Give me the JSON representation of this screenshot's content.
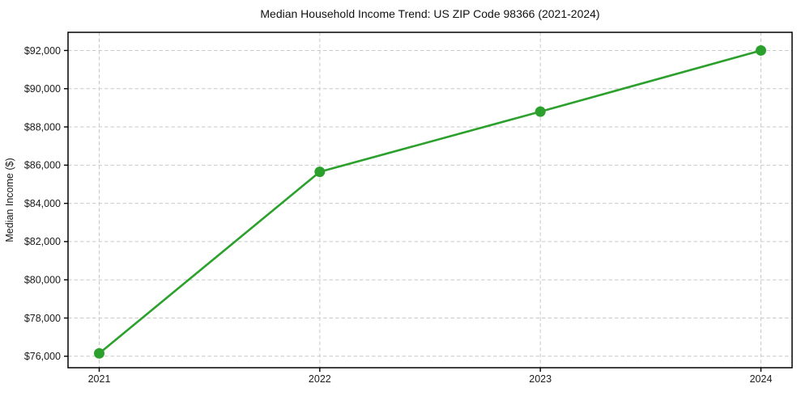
{
  "figure": {
    "background": "#ffffff"
  },
  "chart_data": {
    "type": "line",
    "title": "Median Household Income Trend: US ZIP Code 98366 (2021-2024)",
    "xlabel": "",
    "ylabel": "Median Income ($)",
    "categories": [
      "2021",
      "2022",
      "2023",
      "2024"
    ],
    "values": [
      76150,
      85650,
      88800,
      92000
    ],
    "y_ticks": [
      {
        "value": 76000,
        "label": "$76,000"
      },
      {
        "value": 78000,
        "label": "$78,000"
      },
      {
        "value": 80000,
        "label": "$80,000"
      },
      {
        "value": 82000,
        "label": "$82,000"
      },
      {
        "value": 84000,
        "label": "$84,000"
      },
      {
        "value": 86000,
        "label": "$86,000"
      },
      {
        "value": 88000,
        "label": "$88,000"
      },
      {
        "value": 90000,
        "label": "$90,000"
      },
      {
        "value": 92000,
        "label": "$92,000"
      }
    ],
    "ylim": [
      75400,
      92950
    ],
    "grid": true,
    "grid_style": "dashed",
    "legend": "none",
    "marker": "circle",
    "colors": {
      "line": "#2ca02c",
      "marker": "#2ca02c",
      "grid": "#c9c9c9",
      "spine": "#000000",
      "text": "#1a1a1a"
    }
  }
}
